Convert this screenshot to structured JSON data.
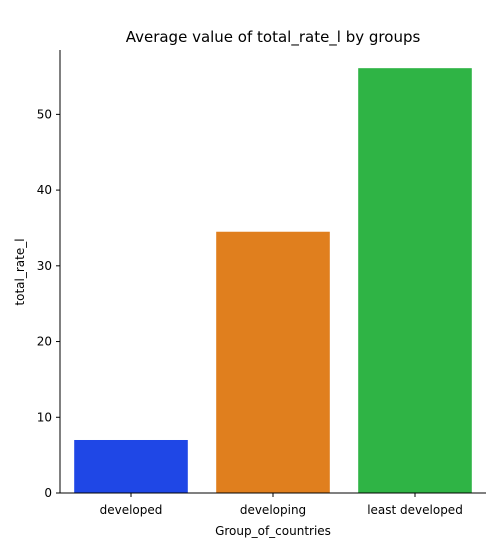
{
  "chart_data": {
    "type": "bar",
    "title": "Average value of total_rate_l by groups",
    "xlabel": "Group_of_countries",
    "ylabel": "total_rate_l",
    "categories": [
      "developed",
      "developing",
      "least developed"
    ],
    "values": [
      7.0,
      34.5,
      56.1
    ],
    "colors": [
      "#1f47e6",
      "#e07f1e",
      "#2fb445"
    ],
    "ylim": [
      0,
      58.5
    ],
    "yticks": [
      0,
      10,
      20,
      30,
      40,
      50
    ],
    "grid": false,
    "legend": "none"
  }
}
